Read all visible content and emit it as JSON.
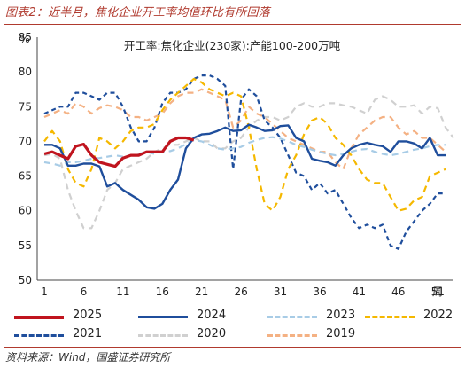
{
  "header": {
    "title": "图表2：近半月，焦化企业开工率均值环比有所回落"
  },
  "footer": {
    "source": "资料来源：Wind，国盛证券研究所"
  },
  "chart_data": {
    "type": "line",
    "title": "开工率:焦化企业(230家):产能100-200万吨",
    "ylabel": "%",
    "xlabel": "周",
    "ylim": [
      50,
      85
    ],
    "xlim": [
      1,
      53
    ],
    "yticks": [
      50,
      55,
      60,
      65,
      70,
      75,
      80,
      85
    ],
    "xticks": [
      1,
      6,
      11,
      16,
      21,
      26,
      31,
      36,
      41,
      46,
      51
    ],
    "grid": false,
    "legend_position": "bottom",
    "series": [
      {
        "name": "2025",
        "color": "#c0141e",
        "dash": "solid",
        "width": 3.2,
        "x": [
          1,
          2,
          3,
          4,
          5,
          6,
          7,
          8,
          9,
          10,
          11,
          12,
          13,
          14,
          15,
          16,
          17,
          18,
          19,
          20
        ],
        "values": [
          68.2,
          68.5,
          68.0,
          67.5,
          69.3,
          69.6,
          68.0,
          67.0,
          66.7,
          66.4,
          67.6,
          68.0,
          68.0,
          68.5,
          68.5,
          68.5,
          70.0,
          70.5,
          70.5,
          70.2
        ]
      },
      {
        "name": "2024",
        "color": "#1f4e9c",
        "dash": "solid",
        "width": 2.4,
        "x": [
          1,
          2,
          3,
          4,
          5,
          6,
          7,
          8,
          9,
          10,
          11,
          12,
          13,
          14,
          15,
          16,
          17,
          18,
          19,
          20,
          21,
          22,
          23,
          24,
          25,
          26,
          27,
          28,
          29,
          30,
          31,
          32,
          33,
          34,
          35,
          36,
          37,
          38,
          39,
          40,
          41,
          42,
          43,
          44,
          45,
          46,
          47,
          48,
          49,
          50,
          51,
          52
        ],
        "values": [
          69.5,
          69.5,
          69.0,
          66.5,
          66.5,
          66.8,
          66.8,
          66.4,
          63.5,
          64.0,
          63.0,
          62.3,
          61.6,
          60.5,
          60.3,
          61.0,
          63.0,
          64.5,
          69.0,
          70.5,
          71.0,
          71.1,
          71.5,
          72.0,
          71.5,
          71.6,
          72.4,
          72.0,
          71.5,
          71.6,
          72.2,
          72.3,
          70.5,
          70.0,
          67.5,
          67.2,
          67.0,
          66.5,
          68.0,
          69.0,
          69.5,
          69.8,
          69.5,
          69.3,
          68.5,
          70.0,
          70.0,
          69.7,
          69.0,
          70.5,
          68.0,
          68.0
        ]
      },
      {
        "name": "2023",
        "color": "#a8cce6",
        "dash": "7,5",
        "width": 2.2,
        "x": [
          1,
          2,
          3,
          4,
          5,
          6,
          7,
          8,
          9,
          10,
          11,
          12,
          13,
          14,
          15,
          16,
          17,
          18,
          19,
          20,
          21,
          22,
          23,
          24,
          25,
          26,
          27,
          28,
          29,
          30,
          31,
          32,
          33,
          34,
          35,
          36,
          37,
          38,
          39,
          40,
          41,
          42,
          43,
          44,
          45,
          46,
          47,
          48,
          49,
          50,
          51,
          52
        ],
        "values": [
          67.0,
          66.8,
          66.5,
          67.0,
          67.0,
          67.2,
          67.5,
          67.6,
          67.8,
          68.0,
          67.8,
          68.0,
          68.2,
          68.5,
          68.2,
          68.5,
          68.6,
          69.0,
          69.6,
          70.2,
          70.0,
          69.5,
          69.0,
          68.8,
          69.0,
          69.2,
          69.8,
          70.2,
          70.5,
          70.6,
          70.4,
          70.0,
          69.5,
          69.2,
          68.8,
          68.5,
          68.2,
          68.0,
          68.2,
          68.5,
          68.8,
          68.9,
          68.5,
          68.2,
          68.0,
          68.2,
          68.5,
          68.8,
          69.0,
          69.3,
          69.5,
          69.5
        ]
      },
      {
        "name": "2022",
        "color": "#f5b800",
        "dash": "7,5",
        "width": 2.2,
        "x": [
          1,
          2,
          3,
          4,
          5,
          6,
          7,
          8,
          9,
          10,
          11,
          12,
          13,
          14,
          15,
          16,
          17,
          18,
          19,
          20,
          21,
          22,
          23,
          24,
          25,
          26,
          27,
          28,
          29,
          30,
          31,
          32,
          33,
          34,
          35,
          36,
          37,
          38,
          39,
          40,
          41,
          42,
          43,
          44,
          45,
          46,
          47,
          48,
          49,
          50,
          51,
          52
        ],
        "values": [
          70.0,
          71.5,
          70.0,
          66.0,
          64.0,
          63.5,
          66.0,
          70.5,
          70.0,
          69.0,
          70.0,
          71.5,
          72.0,
          72.0,
          72.5,
          74.5,
          76.0,
          77.0,
          78.0,
          79.0,
          78.5,
          77.5,
          77.0,
          76.5,
          77.0,
          76.5,
          72.0,
          66.0,
          61.0,
          60.0,
          62.0,
          66.0,
          68.0,
          71.0,
          73.0,
          73.5,
          72.5,
          70.5,
          69.5,
          68.0,
          66.0,
          64.5,
          64.0,
          64.0,
          62.0,
          60.0,
          60.3,
          61.5,
          62.0,
          65.0,
          65.5,
          66.0
        ]
      },
      {
        "name": "2021",
        "color": "#1f4e9c",
        "dash": "5,4",
        "width": 2.2,
        "x": [
          1,
          2,
          3,
          4,
          5,
          6,
          7,
          8,
          9,
          10,
          11,
          12,
          13,
          14,
          15,
          16,
          17,
          18,
          19,
          20,
          21,
          22,
          23,
          24,
          25,
          26,
          27,
          28,
          29,
          30,
          31,
          32,
          33,
          34,
          35,
          36,
          37,
          38,
          39,
          40,
          41,
          42,
          43,
          44,
          45,
          46,
          47,
          48,
          49,
          50,
          51,
          52
        ],
        "values": [
          74.0,
          74.5,
          75.0,
          75.0,
          77.0,
          77.0,
          76.5,
          76.0,
          77.0,
          77.0,
          75.0,
          72.0,
          70.0,
          70.0,
          72.0,
          75.5,
          77.0,
          77.0,
          77.5,
          79.0,
          79.5,
          79.5,
          79.0,
          78.0,
          66.0,
          76.0,
          77.5,
          76.5,
          73.0,
          72.0,
          70.5,
          68.0,
          65.5,
          65.0,
          63.0,
          64.0,
          62.5,
          63.0,
          61.0,
          59.0,
          57.5,
          58.0,
          57.5,
          58.0,
          55.0,
          54.5,
          57.0,
          58.5,
          60.0,
          61.0,
          62.5,
          62.5
        ]
      },
      {
        "name": "2020",
        "color": "#d0d0d0",
        "dash": "7,5",
        "width": 2.2,
        "x": [
          1,
          2,
          3,
          4,
          5,
          6,
          7,
          8,
          9,
          10,
          11,
          12,
          13,
          14,
          15,
          16,
          17,
          18,
          19,
          20,
          21,
          22,
          23,
          24,
          25,
          26,
          27,
          28,
          29,
          30,
          31,
          32,
          33,
          34,
          35,
          36,
          37,
          38,
          39,
          40,
          41,
          42,
          43,
          44,
          45,
          46,
          47,
          48,
          49,
          50,
          51,
          52,
          53
        ],
        "values": [
          68.0,
          68.2,
          67.5,
          63.0,
          60.0,
          57.5,
          57.5,
          60.0,
          63.0,
          64.0,
          66.0,
          66.5,
          67.0,
          67.5,
          68.5,
          69.0,
          69.5,
          69.5,
          70.0,
          70.5,
          70.0,
          70.0,
          69.0,
          69.0,
          70.0,
          70.5,
          72.0,
          73.0,
          73.5,
          73.5,
          73.0,
          73.5,
          75.0,
          75.5,
          75.0,
          75.0,
          75.5,
          75.5,
          75.2,
          75.0,
          74.5,
          74.0,
          76.0,
          76.5,
          76.0,
          75.0,
          75.0,
          75.2,
          74.0,
          75.0,
          74.8,
          72.0,
          70.5
        ]
      },
      {
        "name": "2019",
        "color": "#f4b183",
        "dash": "7,5",
        "width": 2.2,
        "x": [
          1,
          2,
          3,
          4,
          5,
          6,
          7,
          8,
          9,
          10,
          11,
          12,
          13,
          14,
          15,
          16,
          17,
          18,
          19,
          20,
          21,
          22,
          23,
          24,
          25,
          26,
          27,
          28,
          29,
          30,
          31,
          32,
          33,
          34,
          35,
          36,
          37,
          38,
          39,
          40,
          41,
          42,
          43,
          44,
          45,
          46,
          47,
          48,
          49,
          50,
          51,
          52
        ],
        "values": [
          73.5,
          74.0,
          74.5,
          74.0,
          75.5,
          75.0,
          74.0,
          74.8,
          75.2,
          75.0,
          74.5,
          73.5,
          73.5,
          73.0,
          73.5,
          74.0,
          75.5,
          76.5,
          77.0,
          77.0,
          77.5,
          77.0,
          76.5,
          76.0,
          72.0,
          73.0,
          75.0,
          74.0,
          73.5,
          72.5,
          71.5,
          70.5,
          70.0,
          69.5,
          69.0,
          68.5,
          68.5,
          67.0,
          66.0,
          69.0,
          71.0,
          72.0,
          73.0,
          73.5,
          73.5,
          72.0,
          71.0,
          71.5,
          70.5,
          70.5,
          69.5,
          68.5
        ]
      }
    ]
  }
}
